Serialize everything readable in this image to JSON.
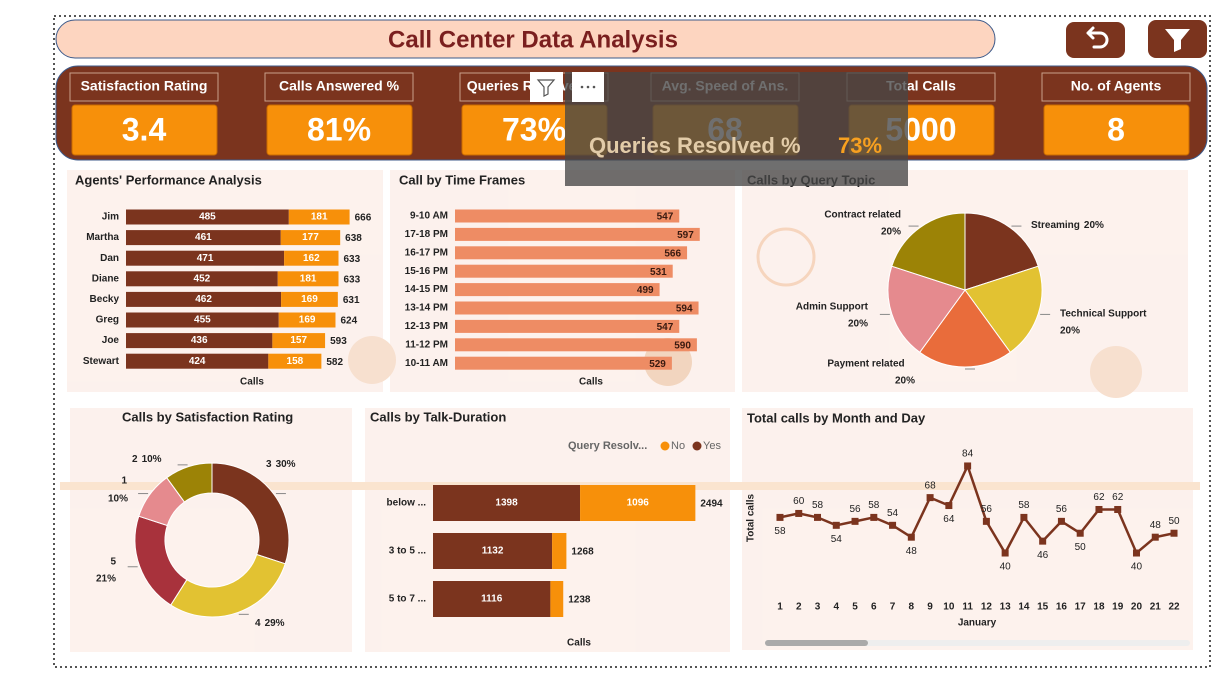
{
  "header": {
    "title": "Call Center Data Analysis"
  },
  "kpis": [
    {
      "label": "Satisfaction Rating",
      "value": "3.4"
    },
    {
      "label": "Calls Answered %",
      "value": "81%"
    },
    {
      "label": "Queries Resolved %",
      "value": "73%"
    },
    {
      "label": "Avg. Speed of Ans.",
      "value": "68"
    },
    {
      "label": "Total Calls",
      "value": "5000"
    },
    {
      "label": "No. of Agents",
      "value": "8"
    }
  ],
  "tooltip": {
    "label": "Queries Resolved %",
    "value": "73%"
  },
  "chart_data": [
    {
      "type": "bar",
      "orientation": "horizontal",
      "stacked": true,
      "title": "Agents' Performance Analysis",
      "categories": [
        "Jim",
        "Martha",
        "Dan",
        "Diane",
        "Becky",
        "Greg",
        "Joe",
        "Stewart"
      ],
      "series": [
        {
          "color": "#f7900a",
          "values": [
            181,
            177,
            162,
            181,
            169,
            169,
            157,
            158
          ]
        },
        {
          "color": "#7b341e",
          "values": [
            485,
            461,
            471,
            452,
            462,
            455,
            436,
            424
          ]
        }
      ],
      "totals": [
        666,
        638,
        633,
        633,
        631,
        624,
        593,
        582
      ],
      "xlabel": "Calls",
      "xlim": [
        0,
        700
      ]
    },
    {
      "type": "bar",
      "orientation": "horizontal",
      "title": "Call by Time Frames",
      "categories": [
        "9-10 AM",
        "17-18 PM",
        "16-17 PM",
        "15-16 PM",
        "14-15 PM",
        "13-14 PM",
        "12-13 PM",
        "11-12 PM",
        "10-11 AM"
      ],
      "values": [
        547,
        597,
        566,
        531,
        499,
        594,
        547,
        590,
        529
      ],
      "color": "#ee8c64",
      "xlabel": "Calls",
      "xlim": [
        0,
        600
      ]
    },
    {
      "type": "pie",
      "title": "Calls by Query Topic",
      "categories": [
        "Streaming",
        "Technical Support",
        "Payment related",
        "Admin Support",
        "Contract related"
      ],
      "values": [
        20,
        20,
        20,
        20,
        20
      ],
      "value_labels": [
        "20%",
        "20%",
        "20%",
        "20%",
        "20%"
      ],
      "colors": [
        "#7b341e",
        "#e2c232",
        "#e96c3b",
        "#e58a8e",
        "#9c8306"
      ]
    },
    {
      "type": "donut",
      "title": "Calls by Satisfaction Rating",
      "categories": [
        "3",
        "4",
        "5",
        "1",
        "2"
      ],
      "values": [
        30,
        29,
        21,
        10,
        10
      ],
      "value_labels": [
        "30%",
        "29%",
        "21%",
        "10%",
        "10%"
      ],
      "colors": [
        "#7b341e",
        "#e2c232",
        "#a8323c",
        "#e58a8e",
        "#9c8306"
      ]
    },
    {
      "type": "bar",
      "orientation": "horizontal",
      "stacked": true,
      "title": "Calls by Talk-Duration",
      "legend_title": "Query Resolv...",
      "categories": [
        "below ...",
        "3 to 5 ...",
        "5 to 7 ..."
      ],
      "series": [
        {
          "name": "No",
          "color": "#f7900a",
          "values": [
            1096,
            136,
            122
          ]
        },
        {
          "name": "Yes",
          "color": "#7b341e",
          "values": [
            1398,
            1132,
            1116
          ]
        }
      ],
      "totals": [
        2494,
        1268,
        1238
      ],
      "xlabel": "Calls",
      "xlim": [
        0,
        2500
      ]
    },
    {
      "type": "line",
      "title": "Total calls by Month and Day",
      "x": [
        1,
        2,
        3,
        4,
        5,
        6,
        7,
        8,
        9,
        10,
        11,
        12,
        13,
        14,
        15,
        16,
        17,
        18,
        19,
        20,
        21,
        22
      ],
      "values": [
        58,
        60,
        58,
        54,
        56,
        58,
        54,
        48,
        68,
        64,
        84,
        56,
        40,
        58,
        46,
        56,
        50,
        62,
        62,
        40,
        48,
        50
      ],
      "color": "#7b341e",
      "xlabel": "January",
      "ylabel": "Total calls",
      "xticks": [
        1,
        2,
        3,
        4,
        5,
        6,
        7,
        8,
        9,
        10,
        11,
        12,
        13,
        14,
        15,
        16,
        17,
        18,
        19,
        20,
        21,
        22
      ],
      "xlim": [
        0.5,
        22.5
      ],
      "ylim": [
        35,
        90
      ]
    }
  ]
}
